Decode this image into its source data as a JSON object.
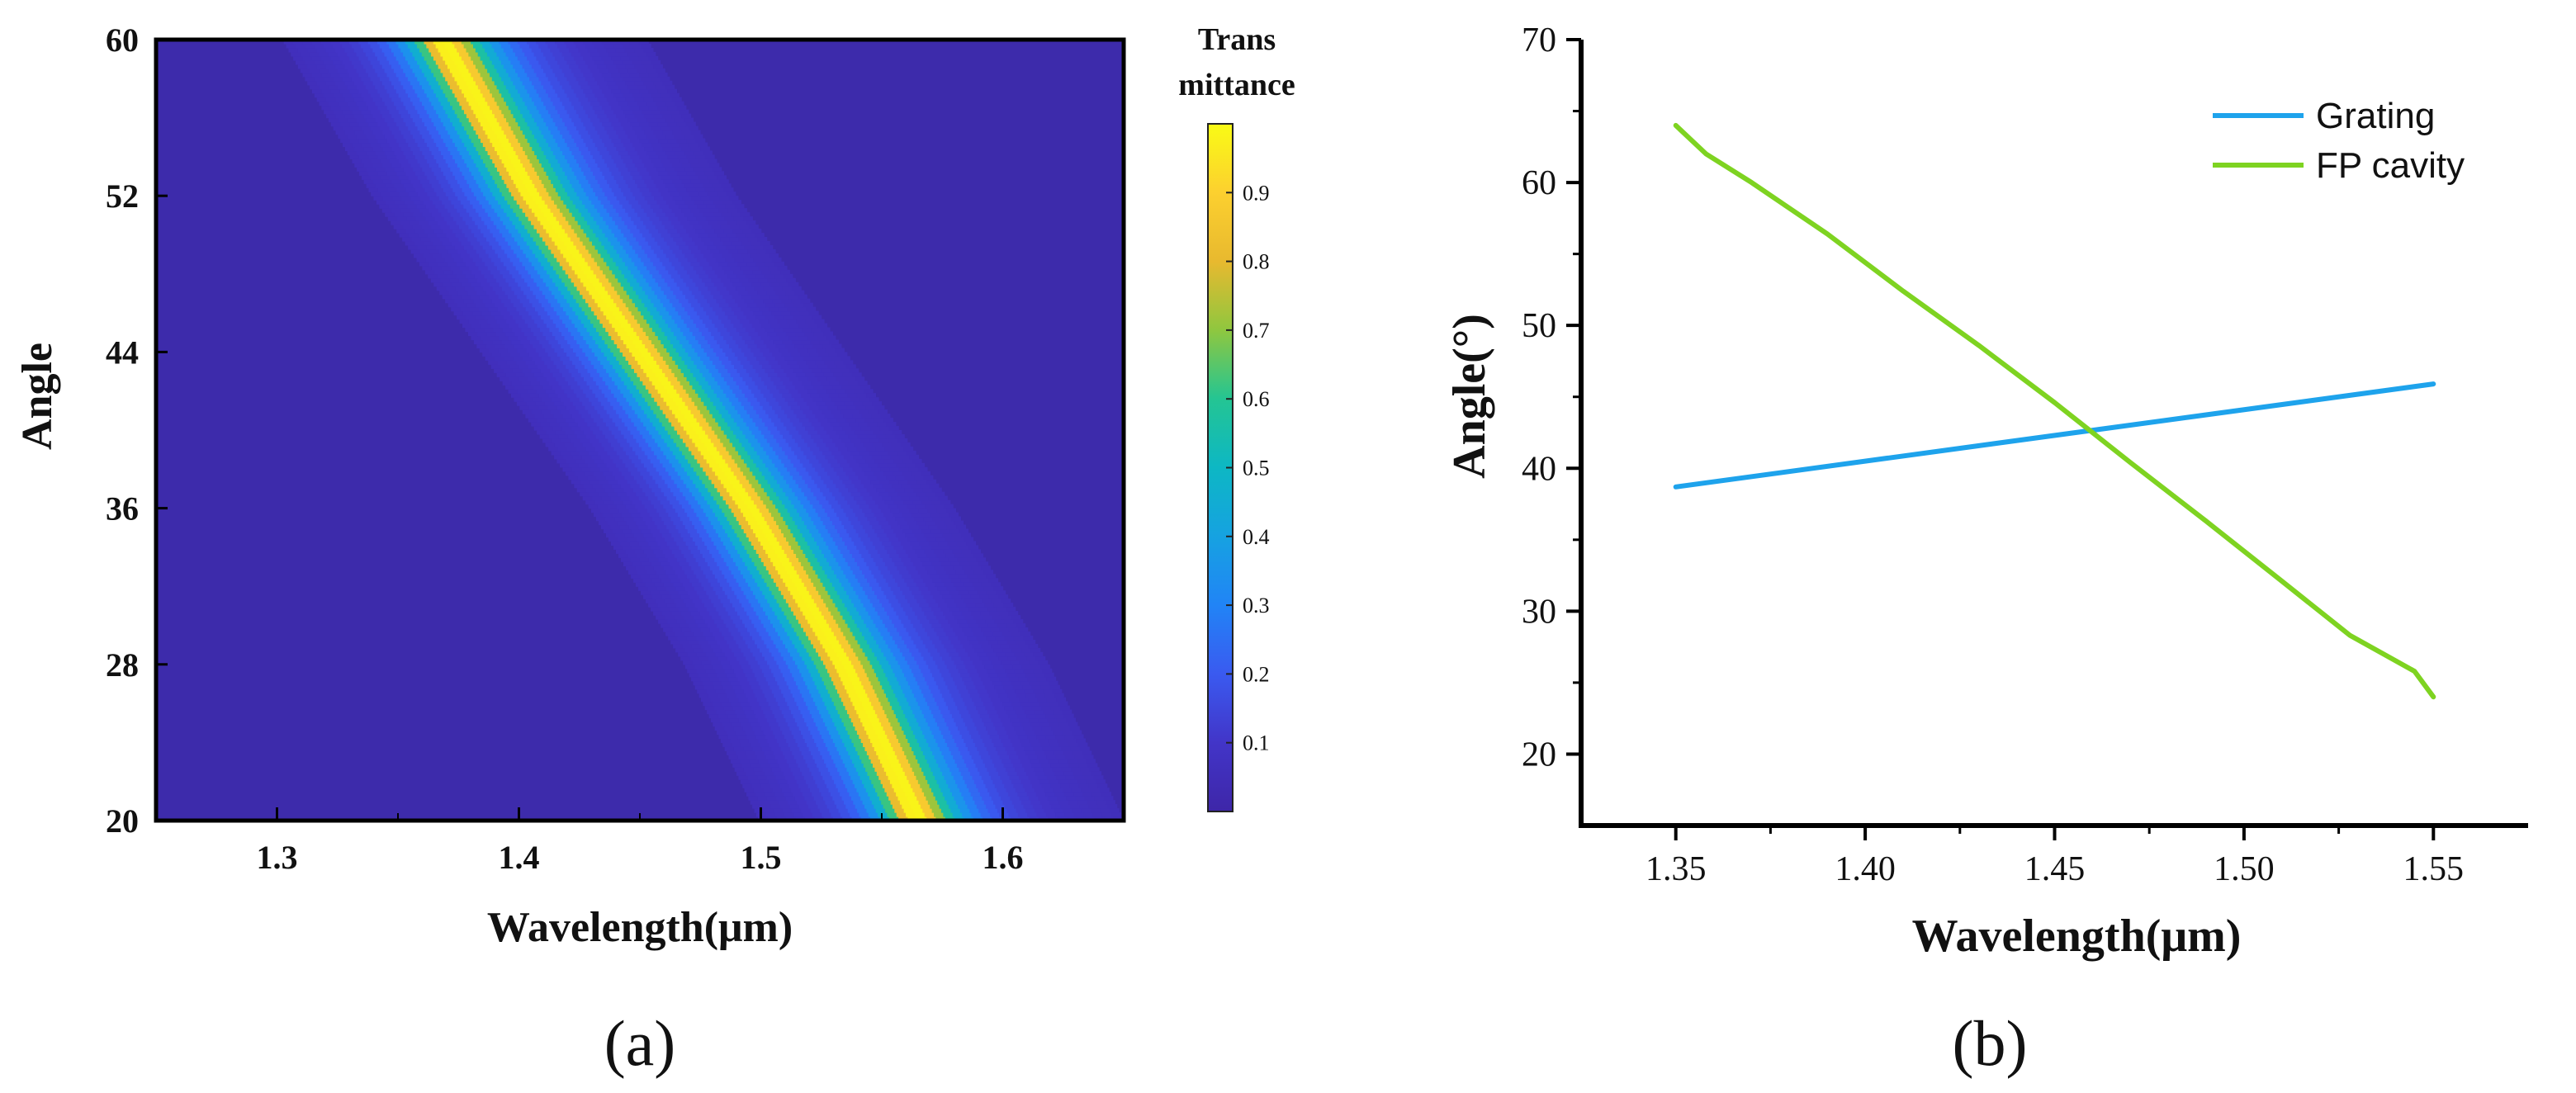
{
  "chart_data": [
    {
      "panel": "(a)",
      "type": "heatmap",
      "xlabel": "Wavelength(μm)",
      "ylabel": "Angle",
      "xlim": [
        1.25,
        1.65
      ],
      "ylim": [
        20,
        60
      ],
      "xticks": [
        "1.3",
        "1.4",
        "1.5",
        "1.6"
      ],
      "yticks": [
        "20",
        "28",
        "36",
        "44",
        "52",
        "60"
      ],
      "colorbar": {
        "title_line1": "Trans",
        "title_line2": "mittance",
        "range": [
          0,
          1
        ],
        "ticks": [
          "0.1",
          "0.2",
          "0.3",
          "0.4",
          "0.5",
          "0.6",
          "0.7",
          "0.8",
          "0.9"
        ]
      },
      "ridge": {
        "description_values": "peak transmittance wavelength vs angle",
        "angle": [
          20,
          28,
          36,
          44,
          52,
          60
        ],
        "wavelength": [
          1.565,
          1.534,
          1.495,
          1.45,
          1.405,
          1.368
        ],
        "peak_value": 1.0,
        "half_width": 0.012
      },
      "background_value": 0.03
    },
    {
      "panel": "(b)",
      "type": "line",
      "xlabel": "Wavelength(μm)",
      "ylabel": "Angle(°)",
      "xlim": [
        1.325,
        1.575
      ],
      "ylim": [
        15,
        70
      ],
      "xticks": [
        "1.35",
        "1.40",
        "1.45",
        "1.50",
        "1.55"
      ],
      "yticks": [
        "20",
        "30",
        "40",
        "50",
        "60",
        "70"
      ],
      "legend_position": "top-right",
      "series": [
        {
          "name": "Grating",
          "color": "#1ea3ec",
          "x": [
            1.35,
            1.55
          ],
          "y": [
            38.7,
            45.9
          ]
        },
        {
          "name": "FP cavity",
          "color": "#7ed321",
          "x": [
            1.35,
            1.358,
            1.37,
            1.39,
            1.41,
            1.43,
            1.45,
            1.47,
            1.49,
            1.51,
            1.528,
            1.545,
            1.55
          ],
          "y": [
            64,
            62,
            60,
            56.4,
            52.4,
            48.6,
            44.6,
            40.4,
            36.3,
            32.1,
            28.3,
            25.8,
            24
          ]
        }
      ]
    }
  ],
  "colors": {
    "axis": "#000000",
    "heat_low": "#3b2aa8",
    "heat_high": "#fbe91a"
  }
}
